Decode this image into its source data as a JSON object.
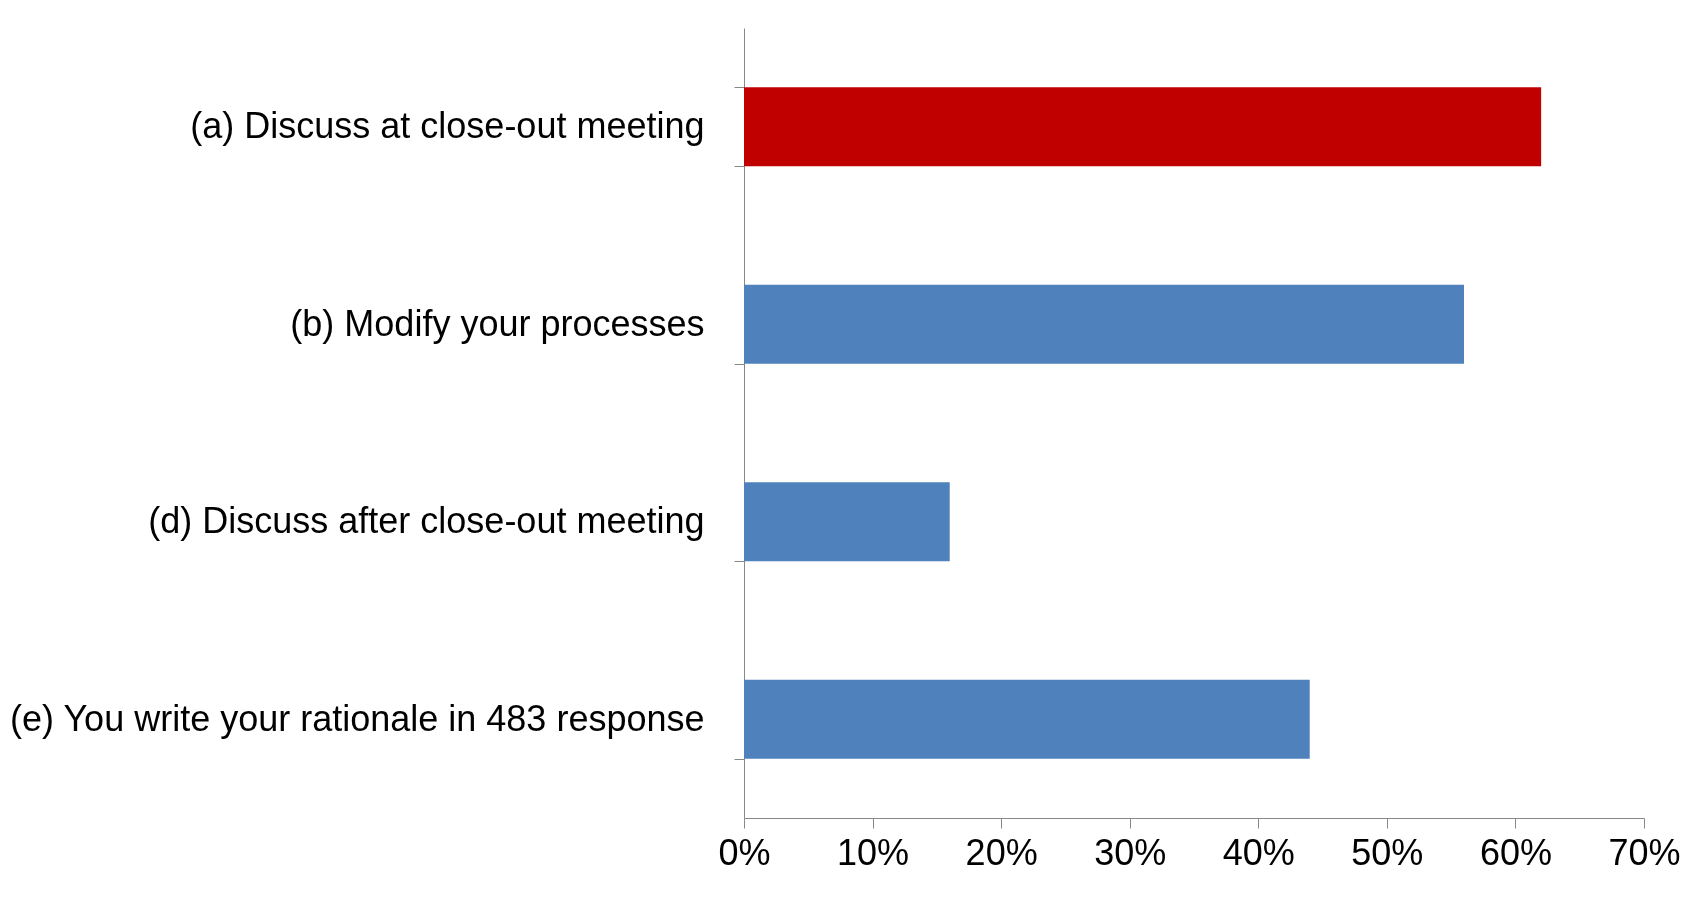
{
  "chart_data": {
    "type": "bar",
    "orientation": "horizontal",
    "categories": [
      "(a) Discuss at close-out meeting",
      "(b) Modify your processes",
      "(d) Discuss after close-out meeting",
      "(e) You write your rationale in 483 response"
    ],
    "values": [
      62,
      56,
      16,
      44
    ],
    "colors": [
      "#c00000",
      "#4f81bd",
      "#4f81bd",
      "#4f81bd"
    ],
    "xlim": [
      0,
      70
    ],
    "xticks": [
      {
        "value": 0,
        "label": "0%"
      },
      {
        "value": 10,
        "label": "10%"
      },
      {
        "value": 20,
        "label": "20%"
      },
      {
        "value": 30,
        "label": "30%"
      },
      {
        "value": 40,
        "label": "40%"
      },
      {
        "value": 50,
        "label": "50%"
      },
      {
        "value": 60,
        "label": "60%"
      },
      {
        "value": 70,
        "label": "70%"
      }
    ],
    "grid": false,
    "legend": false
  }
}
